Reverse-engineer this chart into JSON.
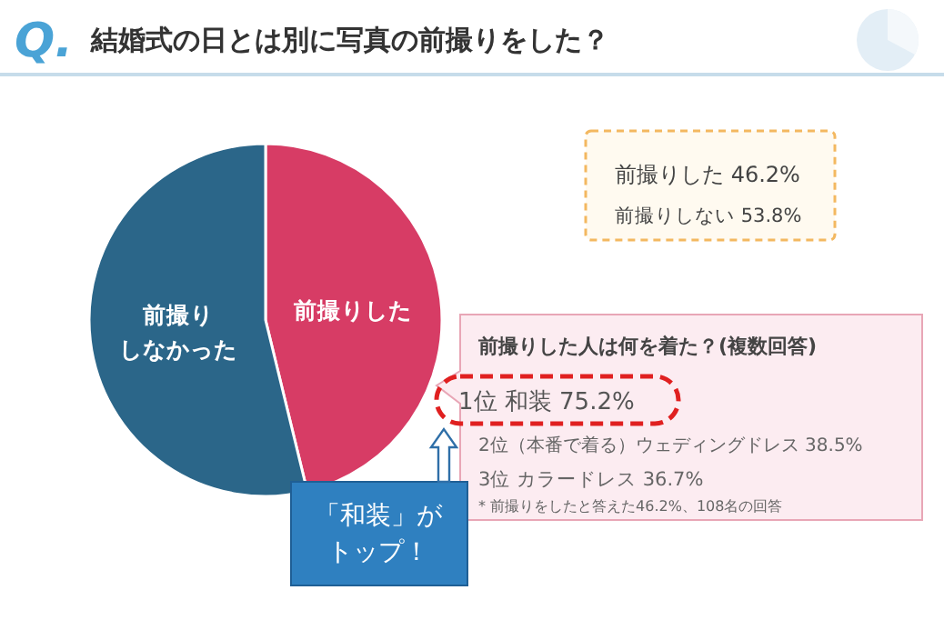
{
  "chart_data": {
    "type": "pie",
    "title": "結婚式の日とは別に写真の前撮りをした？",
    "categories": [
      "前撮りした",
      "前撮りしなかった"
    ],
    "values": [
      46.2,
      53.8
    ],
    "colors": [
      "#d73c65",
      "#2b6689"
    ],
    "annotations": [
      "Q.",
      "前撮りした  46.2%",
      "前撮りしない  53.8%",
      "前撮りした人は何を着た？(複数回答)",
      "1位 和装 75.2%",
      "2位（本番で着る）ウェディングドレス 38.5%",
      "3位 カラードレス 36.7%",
      "* 前撮りをしたと答えた46.2%、108名の回答",
      "「和装」がトップ！"
    ]
  }
}
